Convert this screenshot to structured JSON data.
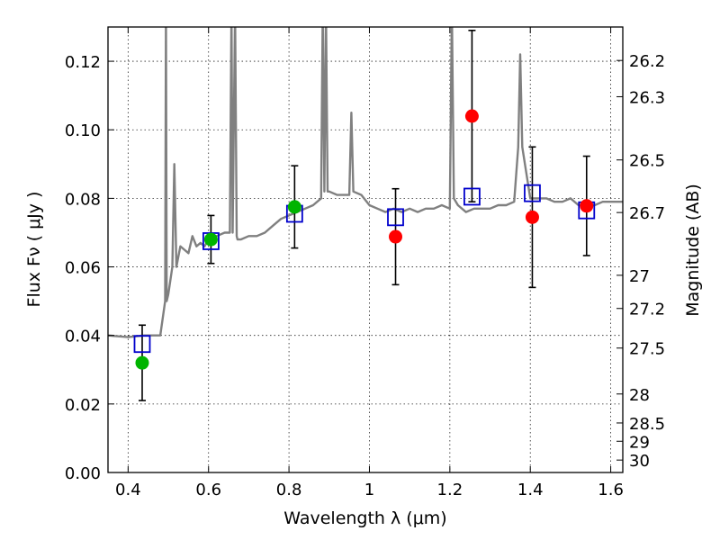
{
  "chart_data": {
    "type": "scatter",
    "xlabel": "Wavelength  λ (μm)",
    "ylabel": "Flux  Fν  ( μJy )",
    "y2label": "Magnitude (AB)",
    "xlim": [
      0.35,
      1.63
    ],
    "ylim": [
      0.0,
      0.13
    ],
    "xticks": [
      0.4,
      0.6,
      0.8,
      1.0,
      1.2,
      1.4,
      1.6
    ],
    "xtick_labels": [
      "0.4",
      "0.6",
      "0.8",
      "1",
      "1.2",
      "1.4",
      "1.6"
    ],
    "yticks": [
      0.0,
      0.02,
      0.04,
      0.06,
      0.08,
      0.1,
      0.12
    ],
    "ytick_labels": [
      "0.00",
      "0.02",
      "0.04",
      "0.06",
      "0.08",
      "0.10",
      "0.12"
    ],
    "mag_ticks": [
      26.2,
      26.3,
      26.5,
      26.7,
      27,
      27.2,
      27.5,
      28,
      28.5,
      29,
      30
    ],
    "mag_tick_labels": [
      "26.2",
      "26.3",
      "26.5",
      "26.7",
      "27",
      "27.2",
      "27.5",
      "28",
      "28.5",
      "29",
      "30"
    ],
    "grid": true,
    "colors": {
      "model_spectrum": "#808080",
      "model_photometry": "#0000cc",
      "observed_secondary": "#00b400",
      "observed_primary": "#ff0000",
      "errorbar": "#000000"
    },
    "series": [
      {
        "name": "model spectrum",
        "kind": "line",
        "x": [
          0.35,
          0.4,
          0.44,
          0.48,
          0.492,
          0.494,
          0.496,
          0.5,
          0.51,
          0.515,
          0.52,
          0.53,
          0.54,
          0.55,
          0.56,
          0.57,
          0.58,
          0.59,
          0.6,
          0.62,
          0.64,
          0.653,
          0.657,
          0.66,
          0.666,
          0.67,
          0.672,
          0.68,
          0.7,
          0.72,
          0.74,
          0.76,
          0.78,
          0.8,
          0.82,
          0.84,
          0.86,
          0.88,
          0.884,
          0.888,
          0.892,
          0.896,
          0.9,
          0.92,
          0.94,
          0.95,
          0.955,
          0.96,
          0.98,
          1.0,
          1.02,
          1.04,
          1.06,
          1.08,
          1.1,
          1.12,
          1.14,
          1.16,
          1.18,
          1.2,
          1.205,
          1.21,
          1.22,
          1.24,
          1.26,
          1.28,
          1.3,
          1.32,
          1.34,
          1.36,
          1.37,
          1.375,
          1.38,
          1.4,
          1.42,
          1.44,
          1.46,
          1.48,
          1.5,
          1.52,
          1.54,
          1.56,
          1.58,
          1.6,
          1.63
        ],
        "y": [
          0.04,
          0.0395,
          0.04,
          0.04,
          0.05,
          0.135,
          0.05,
          0.052,
          0.06,
          0.09,
          0.06,
          0.066,
          0.065,
          0.064,
          0.069,
          0.066,
          0.067,
          0.066,
          0.068,
          0.069,
          0.07,
          0.07,
          0.135,
          0.07,
          0.135,
          0.069,
          0.068,
          0.068,
          0.069,
          0.069,
          0.07,
          0.072,
          0.074,
          0.075,
          0.076,
          0.077,
          0.078,
          0.08,
          0.135,
          0.082,
          0.135,
          0.082,
          0.082,
          0.081,
          0.081,
          0.081,
          0.105,
          0.082,
          0.081,
          0.078,
          0.077,
          0.076,
          0.077,
          0.076,
          0.077,
          0.076,
          0.077,
          0.077,
          0.078,
          0.077,
          0.135,
          0.08,
          0.078,
          0.076,
          0.077,
          0.077,
          0.077,
          0.078,
          0.078,
          0.079,
          0.095,
          0.122,
          0.095,
          0.08,
          0.08,
          0.08,
          0.079,
          0.079,
          0.08,
          0.078,
          0.078,
          0.078,
          0.079,
          0.079,
          0.079
        ]
      },
      {
        "name": "model photometry",
        "kind": "open-square",
        "x": [
          0.435,
          0.606,
          0.814,
          1.065,
          1.255,
          1.405,
          1.54
        ],
        "y": [
          0.0375,
          0.0675,
          0.0755,
          0.0745,
          0.0805,
          0.0815,
          0.0765
        ]
      },
      {
        "name": "observed (green)",
        "kind": "filled-circle",
        "x": [
          0.435,
          0.606,
          0.814
        ],
        "y": [
          0.032,
          0.068,
          0.0775
        ],
        "yerr": [
          0.011,
          0.007,
          0.012
        ]
      },
      {
        "name": "observed (red)",
        "kind": "filled-circle",
        "x": [
          1.065,
          1.255,
          1.405,
          1.54
        ],
        "y": [
          0.0688,
          0.104,
          0.0745,
          0.0778
        ],
        "yerr": [
          0.014,
          0.025,
          0.0205,
          0.0145
        ]
      }
    ]
  }
}
